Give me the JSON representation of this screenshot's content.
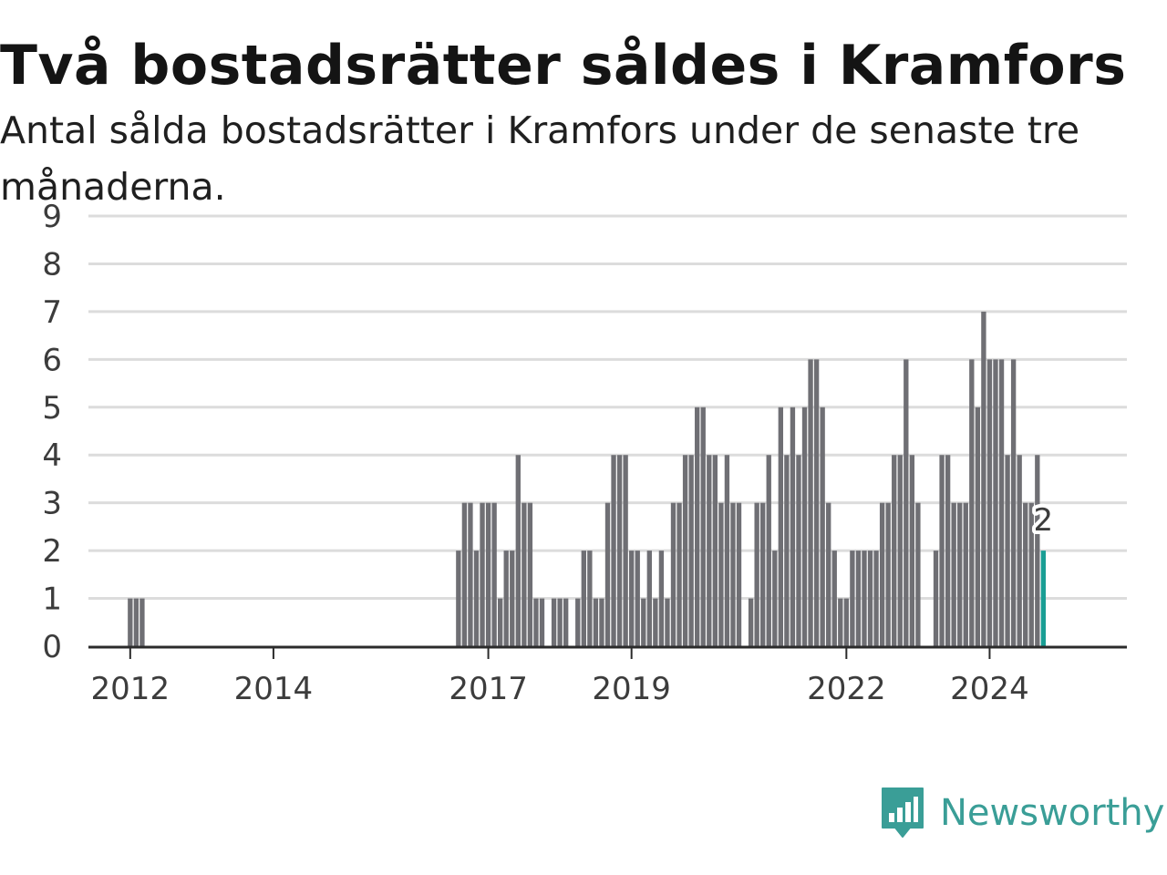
{
  "header": {
    "title": "Två bostadsrätter såldes i Kramfors",
    "subtitle": "Antal sålda bostadsrätter i Kramfors under de senaste tre månaderna."
  },
  "brand": {
    "name": "Newsworthy",
    "icon": "newsworthy-logo-icon"
  },
  "colors": {
    "bar": "#6f6f74",
    "highlight": "#199e94",
    "grid": "#dcdcdc",
    "axis": "#2b2b2b",
    "brand": "#3a9e97"
  },
  "chart_data": {
    "type": "bar",
    "title": "Två bostadsrätter såldes i Kramfors",
    "subtitle": "Antal sålda bostadsrätter i Kramfors under de senaste tre månaderna.",
    "xlabel": "",
    "ylabel": "",
    "ylim": [
      0,
      9
    ],
    "yticks": [
      0,
      1,
      2,
      3,
      4,
      5,
      6,
      7,
      8,
      9
    ],
    "x_range": [
      "2011-06",
      "2025-12"
    ],
    "xtick_labels": [
      {
        "label": "2012",
        "at": "2012-01"
      },
      {
        "label": "2014",
        "at": "2014-01"
      },
      {
        "label": "2017",
        "at": "2017-01"
      },
      {
        "label": "2019",
        "at": "2019-01"
      },
      {
        "label": "2022",
        "at": "2022-01"
      },
      {
        "label": "2024",
        "at": "2024-01"
      }
    ],
    "grid": true,
    "highlight": {
      "month": "2024-10",
      "value": 2,
      "label": "2"
    },
    "series": [
      {
        "values": [
          [
            "2012-01",
            1
          ],
          [
            "2012-02",
            1
          ],
          [
            "2012-03",
            1
          ],
          [
            "2016-08",
            2
          ],
          [
            "2016-09",
            3
          ],
          [
            "2016-10",
            3
          ],
          [
            "2016-11",
            2
          ],
          [
            "2016-12",
            3
          ],
          [
            "2017-01",
            3
          ],
          [
            "2017-02",
            3
          ],
          [
            "2017-03",
            1
          ],
          [
            "2017-04",
            2
          ],
          [
            "2017-05",
            2
          ],
          [
            "2017-06",
            4
          ],
          [
            "2017-07",
            3
          ],
          [
            "2017-08",
            3
          ],
          [
            "2017-09",
            1
          ],
          [
            "2017-10",
            1
          ],
          [
            "2017-12",
            1
          ],
          [
            "2018-01",
            1
          ],
          [
            "2018-02",
            1
          ],
          [
            "2018-04",
            1
          ],
          [
            "2018-05",
            2
          ],
          [
            "2018-06",
            2
          ],
          [
            "2018-07",
            1
          ],
          [
            "2018-08",
            1
          ],
          [
            "2018-09",
            3
          ],
          [
            "2018-10",
            4
          ],
          [
            "2018-11",
            4
          ],
          [
            "2018-12",
            4
          ],
          [
            "2019-01",
            2
          ],
          [
            "2019-02",
            2
          ],
          [
            "2019-03",
            1
          ],
          [
            "2019-04",
            2
          ],
          [
            "2019-05",
            1
          ],
          [
            "2019-06",
            2
          ],
          [
            "2019-07",
            1
          ],
          [
            "2019-08",
            3
          ],
          [
            "2019-09",
            3
          ],
          [
            "2019-10",
            4
          ],
          [
            "2019-11",
            4
          ],
          [
            "2019-12",
            5
          ],
          [
            "2020-01",
            5
          ],
          [
            "2020-02",
            4
          ],
          [
            "2020-03",
            4
          ],
          [
            "2020-04",
            3
          ],
          [
            "2020-05",
            4
          ],
          [
            "2020-06",
            3
          ],
          [
            "2020-07",
            3
          ],
          [
            "2020-09",
            1
          ],
          [
            "2020-10",
            3
          ],
          [
            "2020-11",
            3
          ],
          [
            "2020-12",
            4
          ],
          [
            "2021-01",
            2
          ],
          [
            "2021-02",
            5
          ],
          [
            "2021-03",
            4
          ],
          [
            "2021-04",
            5
          ],
          [
            "2021-05",
            4
          ],
          [
            "2021-06",
            5
          ],
          [
            "2021-07",
            6
          ],
          [
            "2021-08",
            6
          ],
          [
            "2021-09",
            5
          ],
          [
            "2021-10",
            3
          ],
          [
            "2021-11",
            2
          ],
          [
            "2021-12",
            1
          ],
          [
            "2022-01",
            1
          ],
          [
            "2022-02",
            2
          ],
          [
            "2022-03",
            2
          ],
          [
            "2022-04",
            2
          ],
          [
            "2022-05",
            2
          ],
          [
            "2022-06",
            2
          ],
          [
            "2022-07",
            3
          ],
          [
            "2022-08",
            3
          ],
          [
            "2022-09",
            4
          ],
          [
            "2022-10",
            4
          ],
          [
            "2022-11",
            6
          ],
          [
            "2022-12",
            4
          ],
          [
            "2023-01",
            3
          ],
          [
            "2023-04",
            2
          ],
          [
            "2023-05",
            4
          ],
          [
            "2023-06",
            4
          ],
          [
            "2023-07",
            3
          ],
          [
            "2023-08",
            3
          ],
          [
            "2023-09",
            3
          ],
          [
            "2023-10",
            6
          ],
          [
            "2023-11",
            5
          ],
          [
            "2023-12",
            7
          ],
          [
            "2024-01",
            6
          ],
          [
            "2024-02",
            6
          ],
          [
            "2024-03",
            6
          ],
          [
            "2024-04",
            4
          ],
          [
            "2024-05",
            6
          ],
          [
            "2024-06",
            4
          ],
          [
            "2024-07",
            3
          ],
          [
            "2024-08",
            3
          ],
          [
            "2024-09",
            4
          ],
          [
            "2024-10",
            2
          ]
        ]
      }
    ]
  }
}
